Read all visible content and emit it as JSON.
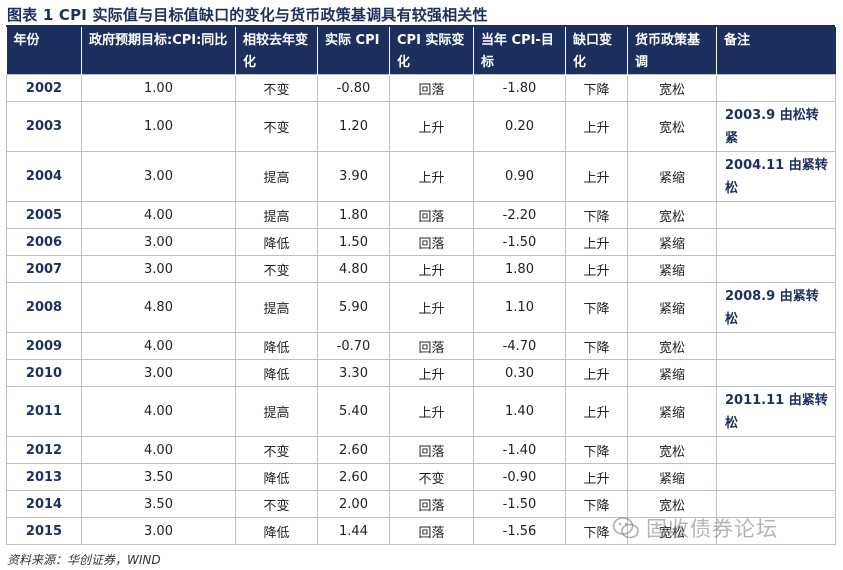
{
  "title": "图表 1   CPI 实际值与目标值缺口的变化与货币政策基调具有较强相关性",
  "headers": [
    "年份",
    "政府预期目标:CPI:同比",
    "相较去年变化",
    "实际 CPI",
    "CPI 实际变化",
    "当年 CPI-目标",
    "缺口变化",
    "货币政策基调",
    "备注"
  ],
  "colors": {
    "header_bg": "#1c2f5e",
    "up": "#e0201c",
    "down": "#15a23a",
    "neutral": "#222222"
  },
  "rows": [
    {
      "year": "2002",
      "target": "1.00",
      "target_change": "不变",
      "target_change_color": "black",
      "actual": "-0.80",
      "actual_change": "回落",
      "actual_change_color": "green",
      "gap": "-1.80",
      "gap_change": "下降",
      "gap_change_color": "green",
      "policy": "宽松",
      "policy_color": "green",
      "note": ""
    },
    {
      "year": "2003",
      "target": "1.00",
      "target_change": "不变",
      "target_change_color": "black",
      "actual": "1.20",
      "actual_change": "上升",
      "actual_change_color": "red",
      "gap": "0.20",
      "gap_change": "上升",
      "gap_change_color": "red",
      "policy": "宽松",
      "policy_color": "green",
      "note": "2003.9 由松转紧"
    },
    {
      "year": "2004",
      "target": "3.00",
      "target_change": "提高",
      "target_change_color": "red",
      "actual": "3.90",
      "actual_change": "上升",
      "actual_change_color": "red",
      "gap": "0.90",
      "gap_change": "上升",
      "gap_change_color": "red",
      "policy": "紧缩",
      "policy_color": "red",
      "note": "2004.11 由紧转松"
    },
    {
      "year": "2005",
      "target": "4.00",
      "target_change": "提高",
      "target_change_color": "red",
      "actual": "1.80",
      "actual_change": "回落",
      "actual_change_color": "green",
      "gap": "-2.20",
      "gap_change": "下降",
      "gap_change_color": "green",
      "policy": "宽松",
      "policy_color": "green",
      "note": ""
    },
    {
      "year": "2006",
      "target": "3.00",
      "target_change": "降低",
      "target_change_color": "green",
      "actual": "1.50",
      "actual_change": "回落",
      "actual_change_color": "green",
      "gap": "-1.50",
      "gap_change": "上升",
      "gap_change_color": "red",
      "policy": "紧缩",
      "policy_color": "red",
      "note": ""
    },
    {
      "year": "2007",
      "target": "3.00",
      "target_change": "不变",
      "target_change_color": "black",
      "actual": "4.80",
      "actual_change": "上升",
      "actual_change_color": "red",
      "gap": "1.80",
      "gap_change": "上升",
      "gap_change_color": "red",
      "policy": "紧缩",
      "policy_color": "red",
      "note": ""
    },
    {
      "year": "2008",
      "target": "4.80",
      "target_change": "提高",
      "target_change_color": "red",
      "actual": "5.90",
      "actual_change": "上升",
      "actual_change_color": "red",
      "gap": "1.10",
      "gap_change": "下降",
      "gap_change_color": "green",
      "policy": "紧缩",
      "policy_color": "red",
      "note": "2008.9 由紧转松"
    },
    {
      "year": "2009",
      "target": "4.00",
      "target_change": "降低",
      "target_change_color": "green",
      "actual": "-0.70",
      "actual_change": "回落",
      "actual_change_color": "green",
      "gap": "-4.70",
      "gap_change": "下降",
      "gap_change_color": "green",
      "policy": "宽松",
      "policy_color": "green",
      "note": ""
    },
    {
      "year": "2010",
      "target": "3.00",
      "target_change": "降低",
      "target_change_color": "green",
      "actual": "3.30",
      "actual_change": "上升",
      "actual_change_color": "red",
      "gap": "0.30",
      "gap_change": "上升",
      "gap_change_color": "red",
      "policy": "紧缩",
      "policy_color": "red",
      "note": ""
    },
    {
      "year": "2011",
      "target": "4.00",
      "target_change": "提高",
      "target_change_color": "red",
      "actual": "5.40",
      "actual_change": "上升",
      "actual_change_color": "red",
      "gap": "1.40",
      "gap_change": "上升",
      "gap_change_color": "red",
      "policy": "紧缩",
      "policy_color": "red",
      "note": "2011.11 由紧转松"
    },
    {
      "year": "2012",
      "target": "4.00",
      "target_change": "不变",
      "target_change_color": "black",
      "actual": "2.60",
      "actual_change": "回落",
      "actual_change_color": "green",
      "gap": "-1.40",
      "gap_change": "下降",
      "gap_change_color": "green",
      "policy": "宽松",
      "policy_color": "green",
      "note": ""
    },
    {
      "year": "2013",
      "target": "3.50",
      "target_change": "降低",
      "target_change_color": "green",
      "actual": "2.60",
      "actual_change": "不变",
      "actual_change_color": "black",
      "gap": "-0.90",
      "gap_change": "上升",
      "gap_change_color": "red",
      "policy": "紧缩",
      "policy_color": "red",
      "note": ""
    },
    {
      "year": "2014",
      "target": "3.50",
      "target_change": "不变",
      "target_change_color": "black",
      "actual": "2.00",
      "actual_change": "回落",
      "actual_change_color": "green",
      "gap": "-1.50",
      "gap_change": "下降",
      "gap_change_color": "green",
      "policy": "宽松",
      "policy_color": "green",
      "note": ""
    },
    {
      "year": "2015",
      "target": "3.00",
      "target_change": "降低",
      "target_change_color": "green",
      "actual": "1.44",
      "actual_change": "回落",
      "actual_change_color": "green",
      "gap": "-1.56",
      "gap_change": "下降",
      "gap_change_color": "green",
      "policy": "宽松",
      "policy_color": "green",
      "note": ""
    }
  ],
  "source": "资料来源：华创证券，WIND",
  "watermark": "固收债券论坛",
  "watermark_icon": "wechat-icon"
}
